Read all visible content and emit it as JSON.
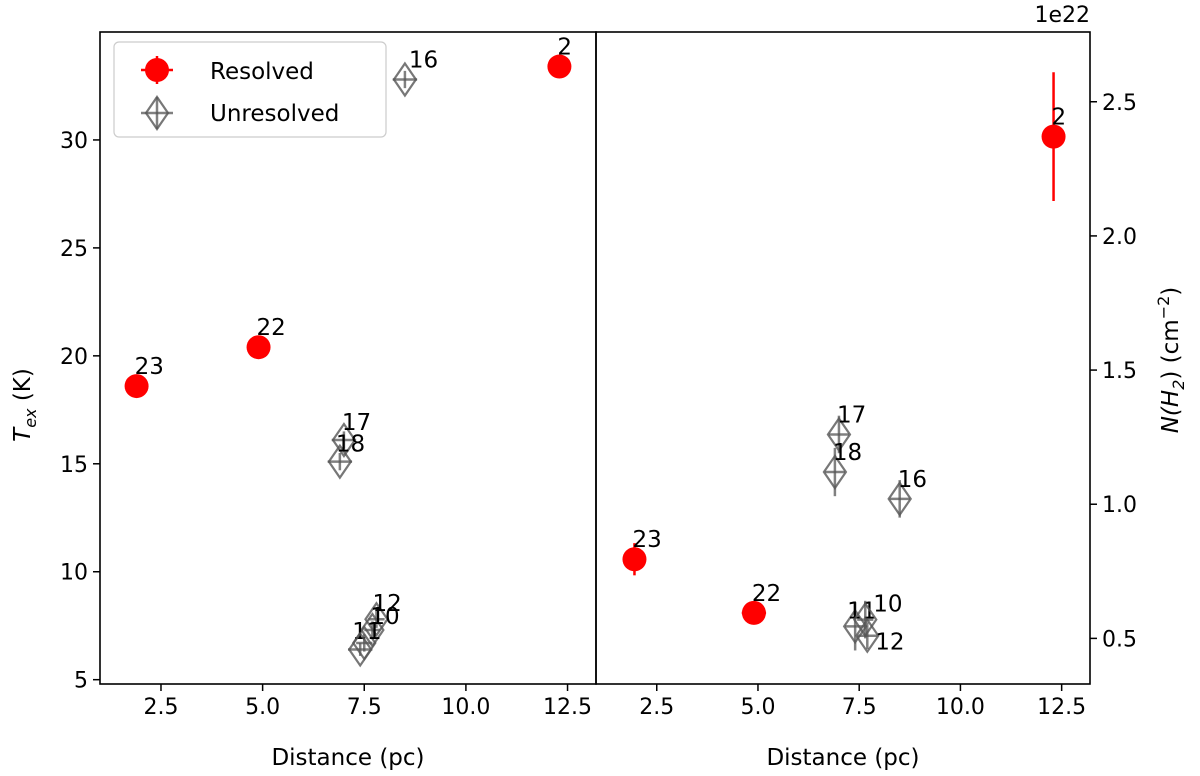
{
  "chart_data": [
    {
      "type": "scatter",
      "panel": "left",
      "xlabel": "Distance (pc)",
      "ylabel_main": "T",
      "ylabel_sub": "ex",
      "ylabel_unit": " (K)",
      "xlim": [
        1.0,
        13.2
      ],
      "ylim": [
        4.8,
        35.0
      ],
      "xticks": [
        2.5,
        5.0,
        7.5,
        10.0,
        12.5
      ],
      "xtick_labels": [
        "2.5",
        "5.0",
        "7.5",
        "10.0",
        "12.5"
      ],
      "yticks": [
        5,
        10,
        15,
        20,
        25,
        30
      ],
      "ytick_labels": [
        "5",
        "10",
        "15",
        "20",
        "25",
        "30"
      ],
      "series": [
        {
          "name": "Resolved",
          "color": "#ff0000",
          "points": [
            {
              "label": "23",
              "x": 1.9,
              "y": 18.6,
              "xerr": 0.15,
              "yerr": 0.2
            },
            {
              "label": "22",
              "x": 4.9,
              "y": 20.4,
              "xerr": 0.15,
              "yerr": 0.2
            },
            {
              "label": "2",
              "x": 12.3,
              "y": 33.4,
              "xerr": 0.2,
              "yerr": 0.2
            }
          ]
        },
        {
          "name": "Unresolved",
          "color": "#555555",
          "points": [
            {
              "label": "16",
              "x": 8.5,
              "y": 32.8,
              "xerr": 0.3,
              "yerr": 0.4
            },
            {
              "label": "17",
              "x": 7.0,
              "y": 16.1,
              "xerr": 0.3,
              "yerr": 0.4
            },
            {
              "label": "18",
              "x": 6.9,
              "y": 15.1,
              "xerr": 0.3,
              "yerr": 0.4
            },
            {
              "label": "12",
              "x": 7.8,
              "y": 7.8,
              "xerr": 0.2,
              "yerr": 0.4
            },
            {
              "label": "10",
              "x": 7.7,
              "y": 7.3,
              "xerr": 0.2,
              "yerr": 0.4
            },
            {
              "label": "11",
              "x": 7.5,
              "y": 6.7,
              "xerr": 0.2,
              "yerr": 0.4
            },
            {
              "label": "",
              "x": 7.4,
              "y": 6.4,
              "xerr": 0.3,
              "yerr": 0.3
            }
          ]
        }
      ],
      "legend": {
        "placement": "top-left",
        "entries": [
          "Resolved",
          "Unresolved"
        ]
      }
    },
    {
      "type": "scatter",
      "panel": "right",
      "xlabel": "Distance (pc)",
      "ylabel_main": "N(H",
      "ylabel_sub": "2",
      "ylabel_unit": ") (cm",
      "ylabel_sup": "−2",
      "ylabel_close": ")",
      "offset_text": "1e22",
      "xlim": [
        1.0,
        13.2
      ],
      "ylim": [
        0.33,
        2.76
      ],
      "xticks": [
        2.5,
        5.0,
        7.5,
        10.0,
        12.5
      ],
      "xtick_labels": [
        "2.5",
        "5.0",
        "7.5",
        "10.0",
        "12.5"
      ],
      "yticks": [
        0.5,
        1.0,
        1.5,
        2.0,
        2.5
      ],
      "ytick_labels": [
        "0.5",
        "1.0",
        "1.5",
        "2.0",
        "2.5"
      ],
      "series": [
        {
          "name": "Resolved",
          "color": "#ff0000",
          "points": [
            {
              "label": "23",
              "x": 1.95,
              "y": 0.795,
              "xerr": 0.25,
              "yerr": 0.06
            },
            {
              "label": "22",
              "x": 4.9,
              "y": 0.595,
              "xerr": 0.3,
              "yerr": 0.03
            },
            {
              "label": "2",
              "x": 12.3,
              "y": 2.37,
              "xerr": 0.25,
              "yerr": 0.24
            }
          ]
        },
        {
          "name": "Unresolved",
          "color": "#555555",
          "points": [
            {
              "label": "17",
              "x": 7.0,
              "y": 1.26,
              "xerr": 0.25,
              "yerr": 0.07
            },
            {
              "label": "18",
              "x": 6.9,
              "y": 1.12,
              "xerr": 0.25,
              "yerr": 0.09
            },
            {
              "label": "16",
              "x": 8.5,
              "y": 1.02,
              "xerr": 0.25,
              "yerr": 0.07
            },
            {
              "label": "11",
              "x": 7.4,
              "y": 0.545,
              "xerr": 0.25,
              "yerr": 0.09
            },
            {
              "label": "10",
              "x": 7.65,
              "y": 0.57,
              "xerr": 0.2,
              "yerr": 0.07
            },
            {
              "label": "12",
              "x": 7.7,
              "y": 0.51,
              "xerr": 0.25,
              "yerr": 0.05
            }
          ]
        }
      ]
    }
  ]
}
